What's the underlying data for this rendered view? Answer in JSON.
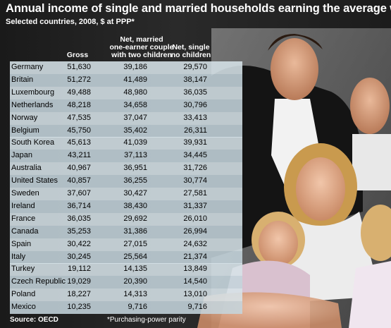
{
  "title": "Annual income of single and married households earning the average wage",
  "subtitle": "Selected countries, 2008, $ at PPP*",
  "source": "Source: OECD",
  "footnote": "*Purchasing-power parity",
  "chart_data": {
    "type": "table",
    "columns": [
      {
        "line1": "Gross",
        "line2": "",
        "line3": ""
      },
      {
        "line1": "Net, married",
        "line2": "one-earner couple",
        "line3": "with two children"
      },
      {
        "line1": "Net, single",
        "line2": "no children",
        "line3": ""
      }
    ],
    "rows": [
      {
        "country": "Germany",
        "gross": "51,630",
        "married": "39,186",
        "single": "29,570"
      },
      {
        "country": "Britain",
        "gross": "51,272",
        "married": "41,489",
        "single": "38,147"
      },
      {
        "country": "Luxembourg",
        "gross": "49,488",
        "married": "48,980",
        "single": "36,035"
      },
      {
        "country": "Netherlands",
        "gross": "48,218",
        "married": "34,658",
        "single": "30,796"
      },
      {
        "country": "Norway",
        "gross": "47,535",
        "married": "37,047",
        "single": "33,413"
      },
      {
        "country": "Belgium",
        "gross": "45,750",
        "married": "35,402",
        "single": "26,311"
      },
      {
        "country": "South Korea",
        "gross": "45,613",
        "married": "41,039",
        "single": "39,931"
      },
      {
        "country": "Japan",
        "gross": "43,211",
        "married": "37,113",
        "single": "34,445"
      },
      {
        "country": "Australia",
        "gross": "40,967",
        "married": "36,951",
        "single": "31,726"
      },
      {
        "country": "United States",
        "gross": "40,857",
        "married": "36,255",
        "single": "30,774"
      },
      {
        "country": "Sweden",
        "gross": "37,607",
        "married": "30,427",
        "single": "27,581"
      },
      {
        "country": "Ireland",
        "gross": "36,714",
        "married": "38,430",
        "single": "31,337"
      },
      {
        "country": "France",
        "gross": "36,035",
        "married": "29,692",
        "single": "26,010"
      },
      {
        "country": "Canada",
        "gross": "35,253",
        "married": "31,386",
        "single": "26,994"
      },
      {
        "country": "Spain",
        "gross": "30,422",
        "married": "27,015",
        "single": "24,632"
      },
      {
        "country": "Italy",
        "gross": "30,245",
        "married": "25,564",
        "single": "21,374"
      },
      {
        "country": "Turkey",
        "gross": "19,112",
        "married": "14,135",
        "single": "13,849"
      },
      {
        "country": "Czech Republic",
        "gross": "19,029",
        "married": "20,390",
        "single": "14,540"
      },
      {
        "country": "Poland",
        "gross": "18,227",
        "married": "14,313",
        "single": "13,010"
      },
      {
        "country": "Mexico",
        "gross": "10,235",
        "married": "9,716",
        "single": "9,716"
      }
    ]
  }
}
